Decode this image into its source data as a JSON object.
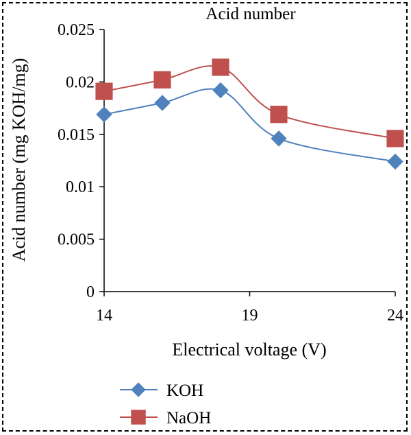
{
  "chart_data": {
    "type": "line",
    "title": "Acid number",
    "xlabel": "Electrical voltage (V)",
    "ylabel": "Acid number (mg KOH/mg)",
    "xlim": [
      14,
      24
    ],
    "ylim": [
      0,
      0.025
    ],
    "x_ticks": [
      14,
      19,
      24
    ],
    "x_tick_labels": [
      "14",
      "19",
      "24"
    ],
    "y_ticks": [
      0,
      0.005,
      0.01,
      0.015,
      0.02,
      0.025
    ],
    "y_tick_labels": [
      "0",
      "0.005",
      "0.01",
      "0.015",
      "0.02",
      "0.025"
    ],
    "grid": false,
    "legend_position": "bottom-left",
    "x": [
      14,
      16,
      18,
      20,
      24
    ],
    "series": [
      {
        "name": "KOH",
        "values": [
          0.0169,
          0.018,
          0.0192,
          0.0146,
          0.0124
        ],
        "color": "#4f81bd",
        "marker": "diamond"
      },
      {
        "name": "NaOH",
        "values": [
          0.0191,
          0.0202,
          0.0214,
          0.0169,
          0.0146
        ],
        "color": "#c0504d",
        "marker": "square"
      }
    ]
  }
}
